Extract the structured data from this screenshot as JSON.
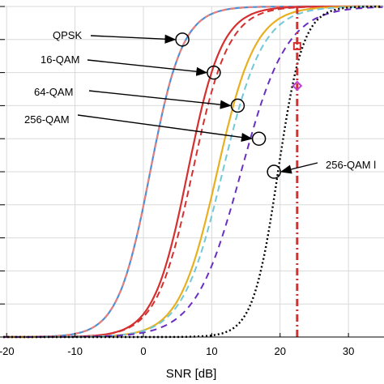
{
  "chart_data": {
    "type": "line",
    "xlabel": "SNR [dB]",
    "ylabel": "",
    "xlim": [
      -20,
      35
    ],
    "ylim": [
      0,
      1
    ],
    "grid": true,
    "x_ticks": [
      -20,
      -10,
      0,
      10,
      20,
      30
    ],
    "x_tick_labels": [
      "-20",
      "-10",
      "0",
      "10",
      "20",
      "30"
    ],
    "y_ticks": [
      0,
      0.1,
      0.2,
      0.3,
      0.4,
      0.5,
      0.6,
      0.7,
      0.8,
      0.9,
      1.0
    ],
    "series": [
      {
        "color": "#4a90d9",
        "dash": "solid",
        "width": 2.2,
        "mid": 1.0,
        "slope": 0.42
      },
      {
        "color": "#e8807a",
        "dash": "6,5",
        "width": 2.2,
        "mid": 1.0,
        "slope": 0.42
      },
      {
        "color": "#d62f2f",
        "dash": "solid",
        "width": 2.2,
        "mid": 6.5,
        "slope": 0.4
      },
      {
        "color": "#d62f2f",
        "dash": "8,5",
        "width": 2.0,
        "mid": 7.2,
        "slope": 0.38
      },
      {
        "color": "#e8b020",
        "dash": "solid",
        "width": 2.2,
        "mid": 10.8,
        "slope": 0.36
      },
      {
        "color": "#70c8d8",
        "dash": "8,5",
        "width": 2.0,
        "mid": 11.6,
        "slope": 0.34
      },
      {
        "color": "#6a2fc0",
        "dash": "8,6",
        "width": 2.0,
        "mid": 14.3,
        "slope": 0.3
      },
      {
        "color": "#000000",
        "dash": "2,3",
        "width": 2.4,
        "mid": 19.7,
        "slope": 0.55
      }
    ],
    "vline": {
      "x": 22.5,
      "color": "#d62f2f",
      "dash": "9,4,2,4"
    },
    "vline_markers": [
      {
        "shape": "square",
        "color": "#d62f2f",
        "y": 0.88
      },
      {
        "shape": "diamond",
        "color": "#c040d0",
        "y": 0.76
      }
    ],
    "annotations": [
      {
        "text": "QPSK",
        "x": 5.7,
        "y": 0.8999
      },
      {
        "text": "16-QAM",
        "x": 10.3,
        "y": 0.8
      },
      {
        "text": "64-QAM",
        "x": 13.8,
        "y": 0.7
      },
      {
        "text": "256-QAM",
        "x": 16.9,
        "y": 0.6
      },
      {
        "text": "256-QAM l",
        "x": 19.1,
        "y": 0.5
      }
    ]
  }
}
